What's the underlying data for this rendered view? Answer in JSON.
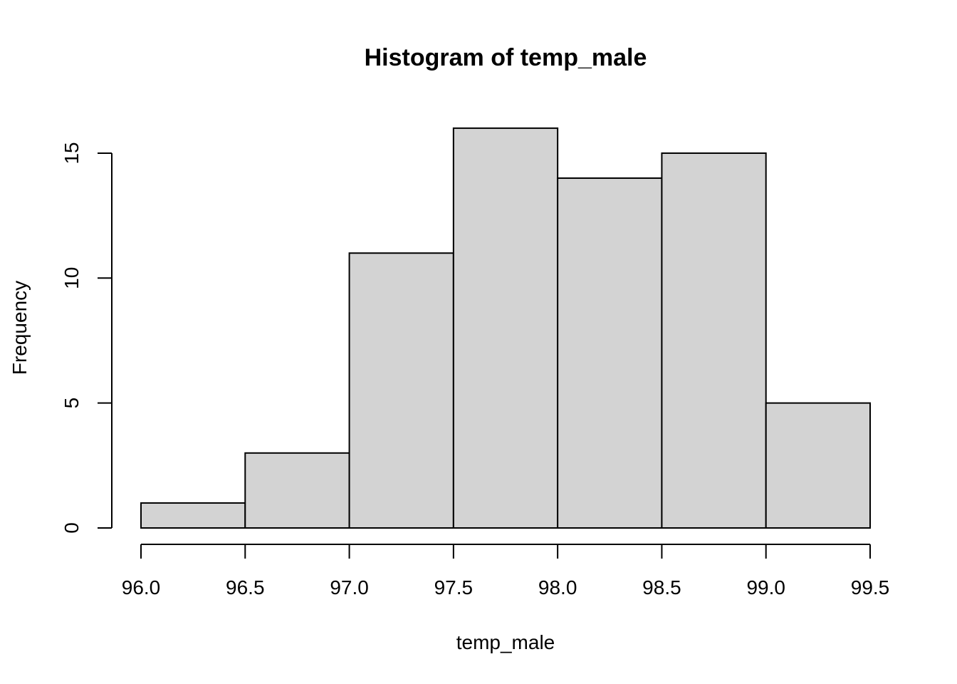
{
  "chart_data": {
    "type": "bar",
    "title": "Histogram of temp_male",
    "xlabel": "temp_male",
    "ylabel": "Frequency",
    "bins": [
      {
        "x0": 96.0,
        "x1": 96.5,
        "count": 1
      },
      {
        "x0": 96.5,
        "x1": 97.0,
        "count": 3
      },
      {
        "x0": 97.0,
        "x1": 97.5,
        "count": 11
      },
      {
        "x0": 97.5,
        "x1": 98.0,
        "count": 16
      },
      {
        "x0": 98.0,
        "x1": 98.5,
        "count": 14
      },
      {
        "x0": 98.5,
        "x1": 99.0,
        "count": 15
      },
      {
        "x0": 99.0,
        "x1": 99.5,
        "count": 5
      }
    ],
    "x_ticks": [
      96.0,
      96.5,
      97.0,
      97.5,
      98.0,
      98.5,
      99.0,
      99.5
    ],
    "x_tick_labels": [
      "96.0",
      "96.5",
      "97.0",
      "97.5",
      "98.0",
      "98.5",
      "99.0",
      "99.5"
    ],
    "y_ticks": [
      0,
      5,
      10,
      15
    ],
    "y_tick_labels": [
      "0",
      "5",
      "10",
      "15"
    ],
    "xlim": [
      96.0,
      99.5
    ],
    "ylim": [
      0,
      16
    ],
    "grid": false,
    "legend": "none",
    "bar_fill": "#d3d3d3",
    "bar_stroke": "#000000"
  }
}
